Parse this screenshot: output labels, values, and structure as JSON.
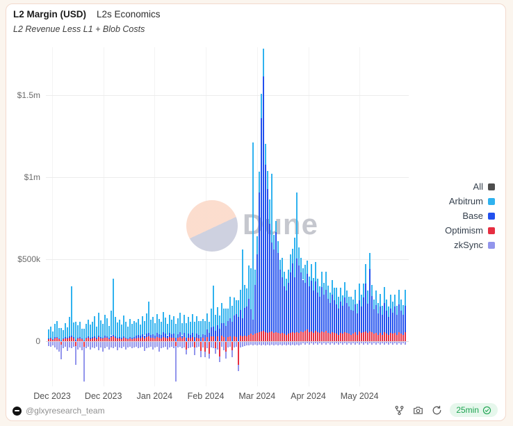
{
  "header": {
    "title": "L2 Margin (USD)",
    "context": "L2s Economics",
    "subtitle": "L2 Revenue Less L1 + Blob Costs"
  },
  "watermark": {
    "text": "Dune"
  },
  "colors": {
    "background": "#fbf5ee",
    "card_border": "#f2d9cd",
    "arbitrum": "#2fb2ef",
    "base": "#2150ee",
    "optimism": "#e62e41",
    "zksync": "#9295ec",
    "all": "#4d4d4d",
    "grid": "#ececec",
    "axis_zero": "#d8d8e0",
    "green": "#1ca350",
    "pill_bg": "#e6f7ec"
  },
  "legend": {
    "items": [
      {
        "label": "All",
        "color": "#4d4d4d"
      },
      {
        "label": "Arbitrum",
        "color": "#2fb2ef"
      },
      {
        "label": "Base",
        "color": "#2150ee"
      },
      {
        "label": "Optimism",
        "color": "#e62e41"
      },
      {
        "label": "zkSync",
        "color": "#9295ec"
      }
    ]
  },
  "footer": {
    "handle": "@glxyresearch_team",
    "refresh_label": "25min"
  },
  "chart_data": {
    "type": "bar",
    "stacked": true,
    "title": "L2 Margin (USD)",
    "subtitle": "L2 Revenue Less L1 + Blob Costs",
    "xlabel": "",
    "ylabel": "USD",
    "grid": "horizontal",
    "legend_position": "right",
    "ylim": [
      -300000,
      1800000
    ],
    "yticks": [
      {
        "label": "$1.5m",
        "value": 1500000
      },
      {
        "label": "$1m",
        "value": 1000000
      },
      {
        "label": "$500k",
        "value": 500000
      },
      {
        "label": "0",
        "value": 0
      }
    ],
    "xtick_labels": [
      "Dec 2023",
      "Dec 2023",
      "Jan 2024",
      "Feb 2024",
      "Mar 2024",
      "Apr 2024",
      "May 2024"
    ],
    "series": [
      {
        "name": "Arbitrum",
        "color": "#2fb2ef"
      },
      {
        "name": "Base",
        "color": "#2150ee"
      },
      {
        "name": "Optimism",
        "color": "#e62e41"
      },
      {
        "name": "zkSync",
        "color": "#9295ec"
      }
    ],
    "values_order": [
      "arbitrum",
      "base",
      "optimism",
      "zksync"
    ],
    "values_unit": "thousand USD (daily margin; negatives are losses)",
    "bars": [
      [
        55,
        4,
        12,
        -25
      ],
      [
        70,
        5,
        16,
        -30
      ],
      [
        45,
        4,
        10,
        -20
      ],
      [
        80,
        6,
        18,
        -35
      ],
      [
        95,
        6,
        20,
        -45
      ],
      [
        60,
        5,
        14,
        -60
      ],
      [
        75,
        6,
        -18,
        -90
      ],
      [
        50,
        4,
        12,
        -40
      ],
      [
        85,
        7,
        18,
        -30
      ],
      [
        65,
        5,
        15,
        -55
      ],
      [
        120,
        8,
        22,
        -35
      ],
      [
        300,
        10,
        25,
        -40
      ],
      [
        90,
        7,
        18,
        -30
      ],
      [
        110,
        8,
        -25,
        -115
      ],
      [
        75,
        6,
        16,
        -45
      ],
      [
        95,
        7,
        18,
        -35
      ],
      [
        60,
        5,
        12,
        -50
      ],
      [
        70,
        6,
        -30,
        -210
      ],
      [
        85,
        7,
        15,
        -40
      ],
      [
        105,
        8,
        20,
        -30
      ],
      [
        80,
        6,
        14,
        -45
      ],
      [
        95,
        7,
        18,
        -35
      ],
      [
        120,
        9,
        22,
        -40
      ],
      [
        70,
        6,
        14,
        -30
      ],
      [
        140,
        10,
        24,
        -50
      ],
      [
        100,
        8,
        18,
        -35
      ],
      [
        85,
        7,
        16,
        -60
      ],
      [
        130,
        10,
        22,
        -40
      ],
      [
        110,
        8,
        20,
        -30
      ],
      [
        75,
        6,
        14,
        -45
      ],
      [
        150,
        11,
        25,
        -35
      ],
      [
        340,
        12,
        28,
        -40
      ],
      [
        120,
        9,
        20,
        -30
      ],
      [
        90,
        7,
        16,
        -50
      ],
      [
        105,
        8,
        18,
        -35
      ],
      [
        80,
        6,
        14,
        -40
      ],
      [
        125,
        9,
        22,
        -30
      ],
      [
        95,
        7,
        16,
        -45
      ],
      [
        70,
        6,
        12,
        -35
      ],
      [
        110,
        8,
        18,
        -30
      ],
      [
        85,
        7,
        14,
        -40
      ],
      [
        100,
        8,
        16,
        -35
      ],
      [
        80,
        15,
        18,
        -30
      ],
      [
        95,
        18,
        22,
        -40
      ],
      [
        70,
        16,
        16,
        -35
      ],
      [
        110,
        20,
        24,
        -30
      ],
      [
        85,
        18,
        18,
        -55
      ],
      [
        120,
        22,
        26,
        -40
      ],
      [
        190,
        24,
        28,
        -35
      ],
      [
        90,
        20,
        20,
        -30
      ],
      [
        105,
        22,
        22,
        -45
      ],
      [
        75,
        18,
        16,
        -35
      ],
      [
        115,
        25,
        24,
        -30
      ],
      [
        95,
        22,
        20,
        -60
      ],
      [
        80,
        20,
        18,
        -40
      ],
      [
        125,
        28,
        26,
        -35
      ],
      [
        100,
        24,
        22,
        -30
      ],
      [
        70,
        20,
        16,
        -45
      ],
      [
        110,
        26,
        24,
        -35
      ],
      [
        90,
        22,
        20,
        -30
      ],
      [
        105,
        25,
        22,
        -40
      ],
      [
        85,
        22,
        -25,
        -215
      ],
      [
        95,
        24,
        20,
        -35
      ],
      [
        120,
        28,
        26,
        -30
      ],
      [
        75,
        20,
        16,
        -40
      ],
      [
        110,
        26,
        24,
        -35
      ],
      [
        90,
        22,
        -45,
        -30
      ],
      [
        100,
        25,
        22,
        -40
      ],
      [
        80,
        22,
        18,
        -35
      ],
      [
        115,
        28,
        24,
        -30
      ],
      [
        95,
        24,
        -35,
        -45
      ],
      [
        105,
        26,
        22,
        -35
      ],
      [
        85,
        22,
        18,
        -30
      ],
      [
        100,
        25,
        -55,
        -40
      ],
      [
        90,
        24,
        20,
        -35
      ],
      [
        85,
        40,
        -60,
        -35
      ],
      [
        100,
        45,
        25,
        -40
      ],
      [
        70,
        50,
        -70,
        -30
      ],
      [
        115,
        55,
        28,
        -35
      ],
      [
        250,
        60,
        30,
        -40
      ],
      [
        95,
        65,
        -40,
        -30
      ],
      [
        110,
        70,
        28,
        -45
      ],
      [
        80,
        75,
        -90,
        -35
      ],
      [
        120,
        80,
        32,
        -30
      ],
      [
        90,
        85,
        26,
        -50
      ],
      [
        105,
        95,
        -60,
        -40
      ],
      [
        75,
        100,
        24,
        -35
      ],
      [
        130,
        110,
        30,
        -30
      ],
      [
        95,
        120,
        -50,
        -45
      ],
      [
        110,
        130,
        28,
        -35
      ],
      [
        85,
        140,
        26,
        -30
      ],
      [
        100,
        150,
        -140,
        -40
      ],
      [
        120,
        160,
        32,
        -35
      ],
      [
        420,
        110,
        30,
        -30
      ],
      [
        140,
        170,
        34,
        -25
      ],
      [
        110,
        180,
        30,
        -20
      ],
      [
        200,
        220,
        40,
        -20
      ],
      [
        250,
        150,
        45,
        -15
      ],
      [
        1080,
        90,
        40,
        -20
      ],
      [
        90,
        300,
        45,
        -15
      ],
      [
        110,
        480,
        50,
        -20
      ],
      [
        130,
        850,
        55,
        -15
      ],
      [
        150,
        1300,
        60,
        -20
      ],
      [
        170,
        1550,
        65,
        -15
      ],
      [
        130,
        1020,
        55,
        -20
      ],
      [
        110,
        880,
        50,
        -15
      ],
      [
        150,
        660,
        55,
        -20
      ],
      [
        420,
        540,
        60,
        -15
      ],
      [
        90,
        510,
        50,
        -20
      ],
      [
        70,
        610,
        55,
        -15
      ],
      [
        70,
        490,
        50,
        -20
      ],
      [
        60,
        390,
        45,
        -15
      ],
      [
        120,
        340,
        50,
        -20
      ],
      [
        90,
        290,
        45,
        -15
      ],
      [
        70,
        270,
        40,
        -20
      ],
      [
        80,
        310,
        45,
        -15
      ],
      [
        110,
        370,
        50,
        -20
      ],
      [
        90,
        420,
        55,
        -15
      ],
      [
        240,
        340,
        50,
        -20
      ],
      [
        400,
        450,
        55,
        -15
      ],
      [
        110,
        410,
        50,
        -20
      ],
      [
        90,
        360,
        60,
        -15
      ],
      [
        70,
        320,
        55,
        -10
      ],
      [
        110,
        290,
        65,
        -15
      ],
      [
        80,
        340,
        70,
        -10
      ],
      [
        60,
        280,
        55,
        -15
      ],
      [
        100,
        310,
        60,
        -10
      ],
      [
        75,
        260,
        50,
        -15
      ],
      [
        120,
        300,
        65,
        -10
      ],
      [
        85,
        240,
        55,
        -15
      ],
      [
        65,
        220,
        50,
        -10
      ],
      [
        95,
        270,
        60,
        -15
      ],
      [
        70,
        230,
        55,
        -10
      ],
      [
        110,
        250,
        65,
        -15
      ],
      [
        80,
        210,
        50,
        -10
      ],
      [
        60,
        190,
        45,
        -15
      ],
      [
        90,
        230,
        55,
        -10
      ],
      [
        75,
        200,
        50,
        -15
      ],
      [
        100,
        180,
        45,
        -10
      ],
      [
        70,
        160,
        40,
        -15
      ],
      [
        85,
        190,
        50,
        -10
      ],
      [
        65,
        170,
        45,
        -15
      ],
      [
        95,
        210,
        55,
        -10
      ],
      [
        75,
        185,
        50,
        -15
      ],
      [
        60,
        165,
        45,
        -10
      ],
      [
        80,
        150,
        40,
        -15
      ],
      [
        70,
        140,
        45,
        -10
      ],
      [
        90,
        170,
        55,
        -15
      ],
      [
        60,
        130,
        40,
        -10
      ],
      [
        100,
        190,
        60,
        -15
      ],
      [
        75,
        160,
        50,
        -10
      ],
      [
        85,
        210,
        55,
        -15
      ],
      [
        120,
        290,
        60,
        -10
      ],
      [
        80,
        180,
        50,
        -15
      ],
      [
        100,
        380,
        60,
        -10
      ],
      [
        70,
        220,
        55,
        -15
      ],
      [
        60,
        150,
        45,
        -10
      ],
      [
        90,
        170,
        50,
        -15
      ],
      [
        65,
        130,
        40,
        -10
      ],
      [
        80,
        160,
        50,
        -15
      ],
      [
        55,
        120,
        40,
        -10
      ],
      [
        95,
        180,
        55,
        -15
      ],
      [
        70,
        140,
        45,
        -10
      ],
      [
        60,
        110,
        40,
        -15
      ],
      [
        85,
        150,
        50,
        -10
      ],
      [
        65,
        130,
        45,
        -15
      ],
      [
        75,
        160,
        50,
        -10
      ],
      [
        55,
        120,
        40,
        -15
      ],
      [
        90,
        170,
        55,
        -10
      ],
      [
        70,
        140,
        45,
        -15
      ],
      [
        60,
        120,
        40,
        -10
      ],
      [
        100,
        160,
        55,
        -15
      ]
    ]
  }
}
